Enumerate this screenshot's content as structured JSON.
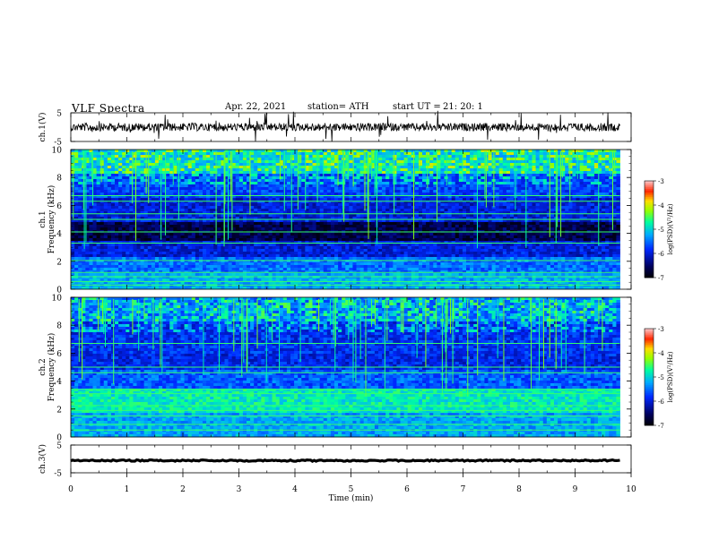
{
  "header": {
    "title": "VLF  Spectra",
    "date": "Apr. 22, 2021",
    "station": "station= ATH",
    "start_label": "start  UT  =",
    "start_time": "21: 20: 1"
  },
  "chart_data": [
    {
      "type": "line",
      "panel": "ch1-waveform",
      "ylabel": "ch.1(V)",
      "ylim": [
        -5,
        5
      ],
      "yticks": [
        "5",
        "-5"
      ],
      "xlim": [
        0,
        10
      ],
      "color": "#000000"
    },
    {
      "type": "heatmap",
      "panel": "ch1-spectrogram",
      "ylabel": "ch.1\nFrequency  (kHz)",
      "ylim": [
        0,
        10
      ],
      "yticks": [
        "0",
        "2",
        "4",
        "6",
        "8",
        "10"
      ],
      "xlim": [
        0,
        10
      ],
      "data_xmax": 9.8,
      "colorbar": {
        "label": "log(PSD)(V²/Hz)",
        "range": [
          -7,
          -3
        ],
        "ticks": [
          "-3",
          "-4",
          "-5",
          "-6",
          "-7"
        ]
      }
    },
    {
      "type": "heatmap",
      "panel": "ch2-spectrogram",
      "ylabel": "ch.2\nFrequency  (kHz)",
      "ylim": [
        0,
        10
      ],
      "yticks": [
        "0",
        "2",
        "4",
        "6",
        "8",
        "10"
      ],
      "xlim": [
        0,
        10
      ],
      "data_xmax": 9.8,
      "colorbar": {
        "label": "log(PSD)(V²/Hz)",
        "range": [
          -7,
          -3
        ],
        "ticks": [
          "-3",
          "-4",
          "-5",
          "-6",
          "-7"
        ]
      }
    },
    {
      "type": "line",
      "panel": "ch3-waveform",
      "ylabel": "ch.3(V)",
      "ylim": [
        -5,
        5
      ],
      "yticks": [
        "5",
        "-5"
      ],
      "xlim": [
        0,
        10
      ],
      "xlabel": "Time  (min)",
      "xticks": [
        "0",
        "1",
        "2",
        "3",
        "4",
        "5",
        "6",
        "7",
        "8",
        "9",
        "10"
      ],
      "color": "#000000"
    }
  ]
}
